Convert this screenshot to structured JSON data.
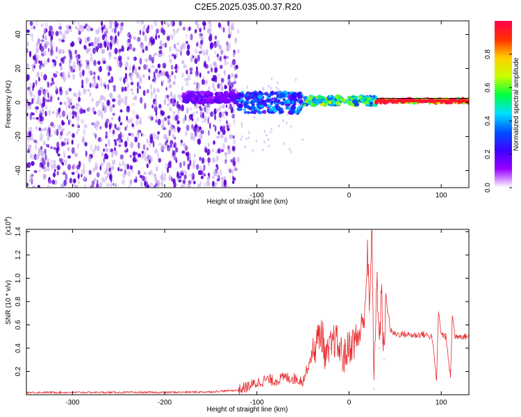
{
  "title": "C2E5.2025.035.00.37.R20",
  "colors": {
    "snr_line": "#e8282b",
    "spec_dense": "#5b00d6",
    "spec_light": "#c6a8ee"
  },
  "chart_data": [
    {
      "type": "heatmap",
      "xlabel": "Height of straight line (km)",
      "ylabel": "Frequency (Hz)",
      "xlim": [
        -350,
        130
      ],
      "ylim": [
        -50,
        48
      ],
      "xticks": [
        -300,
        -200,
        -100,
        0,
        100
      ],
      "xtick_labels": [
        "-300",
        "-200",
        "-100",
        "0",
        "100"
      ],
      "yticks": [
        -40,
        -20,
        0,
        20,
        40
      ],
      "ytick_labels": [
        "-40",
        "-20",
        "0",
        "20",
        "40"
      ],
      "colorbar": {
        "label": "Normalized spectral amplitude",
        "range": [
          0,
          1
        ],
        "ticks": [
          0.0,
          0.2,
          0.4,
          0.6,
          0.8
        ],
        "tick_labels": [
          "0.0",
          "0.2",
          "0.4",
          "0.6",
          "0.8"
        ],
        "colormap": [
          "#ffffff",
          "#9b00ff",
          "#3c00ff",
          "#0050ff",
          "#00e0ff",
          "#00ff40",
          "#c8ff00",
          "#ffd000",
          "#ff3000",
          "#ff0050"
        ]
      },
      "regions": [
        {
          "x_range": [
            -350,
            -120
          ],
          "freq_range": [
            -50,
            48
          ],
          "amplitude": 0.05
        },
        {
          "x_range": [
            -180,
            -120
          ],
          "freq_center": 3,
          "freq_width": 6,
          "amplitude": 0.15
        },
        {
          "x_range": [
            -120,
            -50
          ],
          "freq_center": 0,
          "freq_width": 10,
          "amplitude": 0.3
        },
        {
          "x_range": [
            -50,
            30
          ],
          "freq_center": 1,
          "freq_width": 5,
          "amplitude": 0.5
        },
        {
          "x_range": [
            30,
            130
          ],
          "freq_center": 1,
          "freq_width": 2,
          "amplitude": 0.95
        }
      ]
    },
    {
      "type": "line",
      "xlabel": "Height of straight line (km)",
      "ylabel": "SNR (10 * v/v)",
      "yscale_label": "(x10",
      "yscale_exp": "4",
      "yscale_close": ")",
      "xlim": [
        -350,
        130
      ],
      "ylim": [
        0,
        1.42
      ],
      "xticks": [
        -300,
        -200,
        -100,
        0,
        100
      ],
      "xtick_labels": [
        "-300",
        "-200",
        "-100",
        "0",
        "100"
      ],
      "yticks": [
        0.2,
        0.4,
        0.6,
        0.8,
        1.0,
        1.2,
        1.4
      ],
      "ytick_labels": [
        "0.2",
        "0.4",
        "0.6",
        "0.8",
        "1.0",
        "1.2",
        "1.4"
      ],
      "series": [
        {
          "x": [
            -350,
            -300,
            -250,
            -200,
            -150,
            -120,
            -110,
            -100,
            -90,
            -80,
            -70,
            -60,
            -50,
            -40,
            -35,
            -30,
            -25,
            -20,
            -15,
            -10,
            -5,
            0,
            5,
            10,
            15,
            18,
            20,
            22,
            25,
            27,
            30,
            33,
            35,
            38,
            40,
            45,
            50,
            60,
            70,
            80,
            90,
            95,
            97,
            100,
            105,
            110,
            112,
            115,
            120,
            125,
            130
          ],
          "y": [
            0.02,
            0.02,
            0.02,
            0.02,
            0.025,
            0.04,
            0.07,
            0.1,
            0.13,
            0.12,
            0.15,
            0.14,
            0.12,
            0.35,
            0.45,
            0.55,
            0.3,
            0.4,
            0.48,
            0.38,
            0.32,
            0.42,
            0.45,
            0.5,
            0.6,
            0.85,
            1.25,
            0.7,
            1.4,
            0.05,
            1.05,
            0.4,
            0.9,
            0.3,
            0.85,
            0.55,
            0.52,
            0.52,
            0.51,
            0.52,
            0.5,
            0.12,
            0.72,
            0.52,
            0.5,
            0.15,
            0.68,
            0.5,
            0.51,
            0.5,
            0.5
          ]
        }
      ]
    }
  ]
}
